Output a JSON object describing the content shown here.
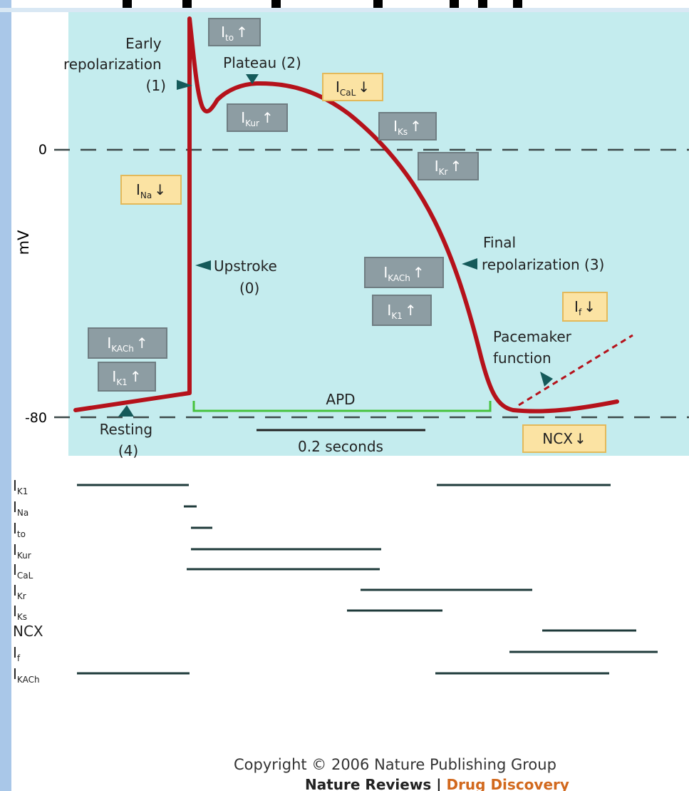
{
  "axis": {
    "y_label": "mV",
    "tick_zero": "0",
    "tick_minus80": "-80"
  },
  "phases": {
    "early_repol": [
      "Early",
      "repolarization",
      "(1)"
    ],
    "plateau": "Plateau (2)",
    "upstroke": [
      "Upstroke",
      "(0)"
    ],
    "final_repol": [
      "Final",
      "repolarization (3)"
    ],
    "resting": [
      "Resting",
      "(4)"
    ],
    "pacemaker": [
      "Pacemaker",
      "function"
    ]
  },
  "apd_label": "APD",
  "scale_label": "0.2 seconds",
  "currents": [
    {
      "main": "I",
      "sub": "to",
      "arrow": "↑",
      "kind": "gray"
    },
    {
      "main": "I",
      "sub": "CaL",
      "arrow": "↓",
      "kind": "yellow"
    },
    {
      "main": "I",
      "sub": "Kur",
      "arrow": "↑",
      "kind": "gray"
    },
    {
      "main": "I",
      "sub": "Ks",
      "arrow": "↑",
      "kind": "gray"
    },
    {
      "main": "I",
      "sub": "Kr",
      "arrow": "↑",
      "kind": "gray"
    },
    {
      "main": "I",
      "sub": "Na",
      "arrow": "↓",
      "kind": "yellow"
    },
    {
      "main": "I",
      "sub": "KACh",
      "arrow": "↑",
      "kind": "gray"
    },
    {
      "main": "I",
      "sub": "K1",
      "arrow": "↑",
      "kind": "gray"
    },
    {
      "main": "I",
      "sub": "f",
      "arrow": "↓",
      "kind": "yellow"
    },
    {
      "main": "I",
      "sub": "KACh",
      "arrow": "↑",
      "kind": "gray"
    },
    {
      "main": "I",
      "sub": "K1",
      "arrow": "↑",
      "kind": "gray"
    },
    {
      "main": "NCX",
      "sub": "",
      "arrow": "↓",
      "kind": "yellow"
    }
  ],
  "timeline": [
    {
      "main": "I",
      "sub": "K1"
    },
    {
      "main": "I",
      "sub": "Na"
    },
    {
      "main": "I",
      "sub": "to"
    },
    {
      "main": "I",
      "sub": "Kur"
    },
    {
      "main": "I",
      "sub": "CaL"
    },
    {
      "main": "I",
      "sub": "Kr"
    },
    {
      "main": "I",
      "sub": "Ks"
    },
    {
      "main": "NCX",
      "sub": ""
    },
    {
      "main": "I",
      "sub": "f"
    },
    {
      "main": "I",
      "sub": "KACh"
    }
  ],
  "copyright": "Copyright © 2006 Nature Publishing Group",
  "journal_part1": "Nature Reviews | ",
  "journal_part2": "Drug Discovery",
  "colors": {
    "curve": "#b5121b",
    "panel": "#c4ecee",
    "gray_box": "#8d9da3",
    "yellow_box": "#fbe3a3",
    "apd": "#46c23d",
    "timeline_bar": "#1f3b3b"
  }
}
